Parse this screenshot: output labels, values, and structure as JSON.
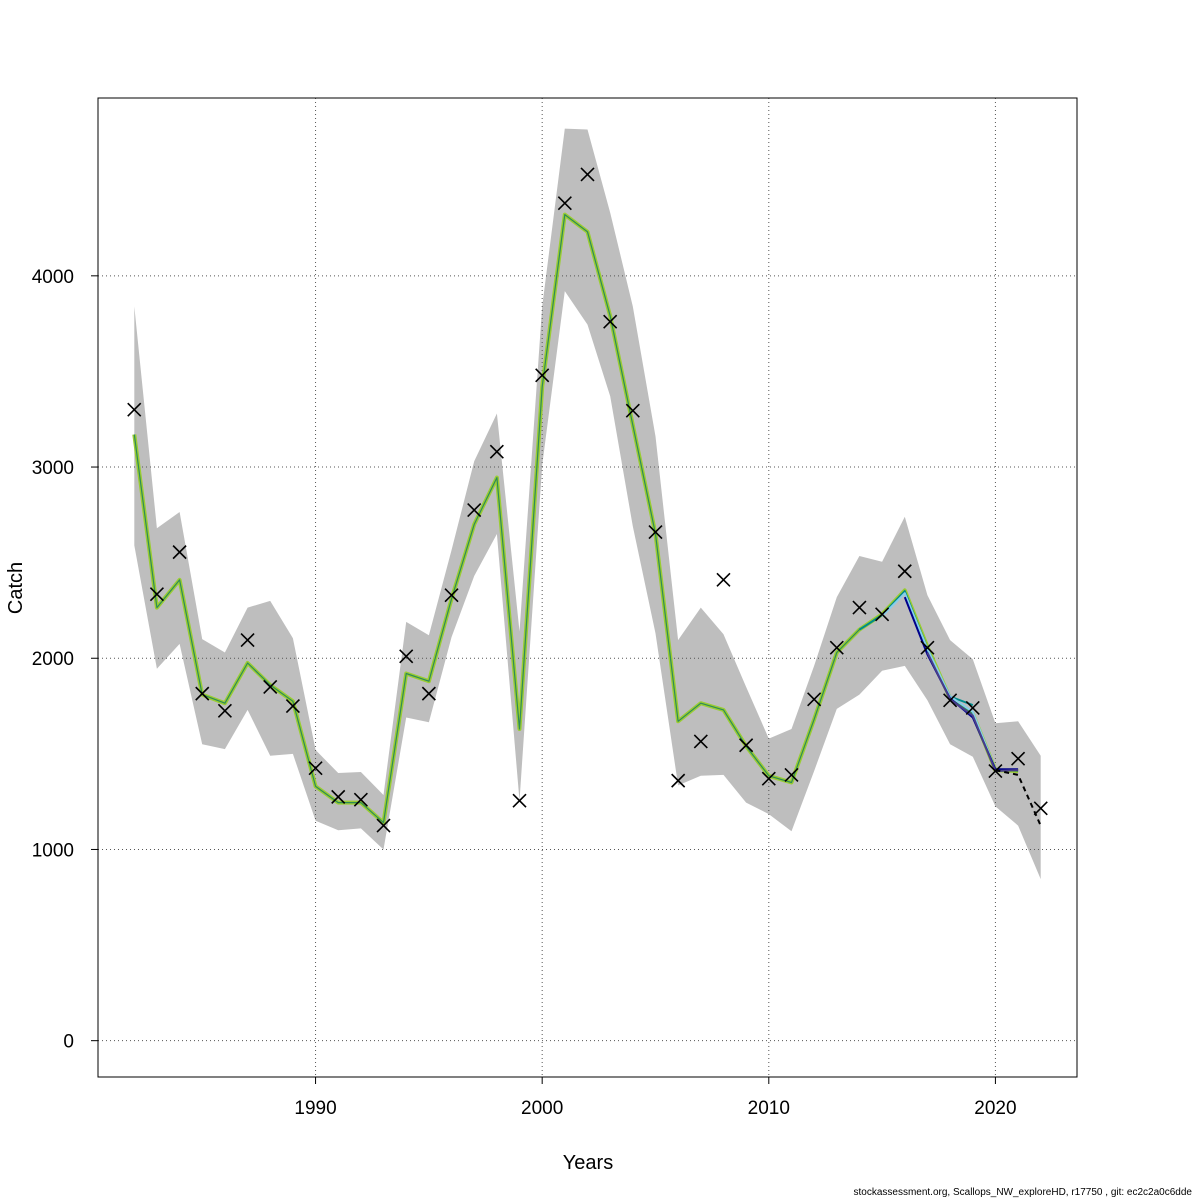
{
  "chart_data": {
    "type": "line",
    "xlabel": "Years",
    "ylabel": "Catch",
    "xlim": [
      1980.4,
      2023.6
    ],
    "ylim": [
      -190,
      4930
    ],
    "x_ticks": [
      1990,
      2000,
      2010,
      2020
    ],
    "y_ticks": [
      0,
      1000,
      2000,
      3000,
      4000
    ],
    "grid": true,
    "colors": {
      "band": "#bebebe",
      "main_line": "#9acd32",
      "main_line_inner": "#2e8b57",
      "retro_1": "#008b8b",
      "retro_2": "#87ceeb",
      "retro_3": "#00008b",
      "retro_4": "#483d8b",
      "projection": "#000000",
      "observed_marker": "#000000"
    },
    "observed": {
      "years": [
        1982,
        1983,
        1984,
        1985,
        1986,
        1987,
        1988,
        1989,
        1990,
        1991,
        1992,
        1993,
        1994,
        1995,
        1996,
        1997,
        1998,
        1999,
        2000,
        2001,
        2002,
        2003,
        2004,
        2005,
        2006,
        2007,
        2008,
        2009,
        2010,
        2011,
        2012,
        2013,
        2014,
        2015,
        2016,
        2017,
        2018,
        2019,
        2020,
        2021,
        2022
      ],
      "values": [
        3300,
        2335,
        2555,
        1815,
        1725,
        2095,
        1850,
        1750,
        1425,
        1275,
        1260,
        1125,
        2010,
        1815,
        2330,
        2775,
        3080,
        1255,
        3480,
        4380,
        4530,
        3760,
        3295,
        2660,
        1360,
        1565,
        2410,
        1545,
        1370,
        1390,
        1785,
        2055,
        2265,
        2230,
        2455,
        2055,
        1780,
        1740,
        1410,
        1475,
        1215
      ]
    },
    "fitted": {
      "years": [
        1982,
        1983,
        1984,
        1985,
        1986,
        1987,
        1988,
        1989,
        1990,
        1991,
        1992,
        1993,
        1994,
        1995,
        1996,
        1997,
        1998,
        1999,
        2000,
        2001,
        2002,
        2003,
        2004,
        2005,
        2006,
        2007,
        2008,
        2009,
        2010,
        2011,
        2012,
        2013,
        2014,
        2015,
        2016,
        2017,
        2018,
        2019,
        2020,
        2021
      ],
      "values": [
        3170,
        2265,
        2410,
        1810,
        1765,
        1975,
        1860,
        1775,
        1330,
        1245,
        1245,
        1140,
        1920,
        1880,
        2310,
        2700,
        2945,
        1630,
        3420,
        4320,
        4230,
        3790,
        3220,
        2650,
        1670,
        1765,
        1730,
        1540,
        1385,
        1350,
        1680,
        2030,
        2150,
        2230,
        2355,
        2060,
        1790,
        1710,
        1415,
        1410
      ]
    },
    "band": {
      "years": [
        1982,
        1983,
        1984,
        1985,
        1986,
        1987,
        1988,
        1989,
        1990,
        1991,
        1992,
        1993,
        1994,
        1995,
        1996,
        1997,
        1998,
        1999,
        2000,
        2001,
        2002,
        2003,
        2004,
        2005,
        2006,
        2007,
        2008,
        2009,
        2010,
        2011,
        2012,
        2013,
        2014,
        2015,
        2016,
        2017,
        2018,
        2019,
        2020,
        2021,
        2022
      ],
      "lower": [
        2590,
        1945,
        2075,
        1550,
        1525,
        1730,
        1490,
        1500,
        1150,
        1100,
        1110,
        1000,
        1690,
        1665,
        2110,
        2430,
        2650,
        1255,
        3010,
        3920,
        3745,
        3370,
        2690,
        2130,
        1335,
        1385,
        1390,
        1245,
        1185,
        1095,
        1410,
        1735,
        1810,
        1935,
        1960,
        1780,
        1550,
        1485,
        1225,
        1125,
        845
      ],
      "upper": [
        3840,
        2680,
        2765,
        2100,
        2030,
        2265,
        2300,
        2105,
        1520,
        1400,
        1405,
        1285,
        2190,
        2120,
        2565,
        3030,
        3280,
        2140,
        3840,
        4770,
        4765,
        4330,
        3840,
        3160,
        2095,
        2265,
        2125,
        1850,
        1580,
        1630,
        1960,
        2320,
        2535,
        2505,
        2740,
        2330,
        2095,
        1995,
        1660,
        1670,
        1490
      ]
    },
    "retro_series": [
      {
        "years": [
          2014,
          2015,
          2016,
          2017,
          2018,
          2019
        ],
        "values": [
          2150,
          2225,
          2350,
          2040,
          1800,
          1755
        ]
      },
      {
        "years": [
          2015,
          2016,
          2017,
          2018,
          2019,
          2020
        ],
        "values": [
          2220,
          2340,
          2050,
          1800,
          1720,
          1420
        ]
      },
      {
        "years": [
          2016,
          2017,
          2018,
          2019,
          2020,
          2021
        ],
        "values": [
          2320,
          2020,
          1790,
          1690,
          1420,
          1420
        ]
      },
      {
        "years": [
          2017,
          2018,
          2019,
          2020,
          2021
        ],
        "values": [
          2030,
          1785,
          1700,
          1410,
          1415
        ]
      }
    ],
    "projection": {
      "years": [
        2020,
        2021,
        2022
      ],
      "values": [
        1415,
        1390,
        1125
      ]
    }
  },
  "footer": "stockassessment.org, Scallops_NW_exploreHD, r17750 , git: ec2c2a0c6dde"
}
